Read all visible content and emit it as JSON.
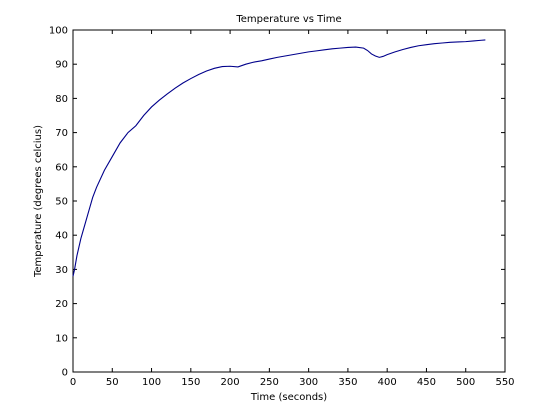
{
  "chart_data": {
    "type": "line",
    "title": "Temperature vs Time",
    "xlabel": "Time (seconds)",
    "ylabel": "Temperature (degrees celcius)",
    "xlim": [
      0,
      550
    ],
    "ylim": [
      0,
      100
    ],
    "xticks": [
      0,
      50,
      100,
      150,
      200,
      250,
      300,
      350,
      400,
      450,
      500,
      550
    ],
    "yticks": [
      0,
      10,
      20,
      30,
      40,
      50,
      60,
      70,
      80,
      90,
      100
    ],
    "grid": false,
    "line_color": "#00008B",
    "series": [
      {
        "x": [
          0,
          2,
          5,
          10,
          15,
          20,
          25,
          30,
          40,
          50,
          60,
          70,
          80,
          90,
          100,
          110,
          120,
          130,
          140,
          150,
          160,
          170,
          180,
          190,
          200,
          210,
          220,
          230,
          240,
          250,
          260,
          270,
          280,
          290,
          300,
          310,
          320,
          330,
          340,
          350,
          360,
          370,
          375,
          380,
          385,
          390,
          395,
          400,
          410,
          420,
          430,
          440,
          450,
          460,
          470,
          480,
          490,
          500,
          510,
          520,
          525
        ],
        "y": [
          28,
          30,
          34,
          39,
          43,
          47,
          51,
          54,
          59,
          63,
          67,
          70,
          72,
          75,
          77.5,
          79.5,
          81.3,
          83,
          84.5,
          85.8,
          87,
          88,
          88.8,
          89.3,
          89.4,
          89.2,
          90,
          90.6,
          91,
          91.5,
          92,
          92.4,
          92.8,
          93.2,
          93.6,
          93.9,
          94.2,
          94.5,
          94.7,
          94.9,
          95,
          94.7,
          94,
          93,
          92.4,
          92,
          92.3,
          92.8,
          93.6,
          94.3,
          94.9,
          95.4,
          95.7,
          96,
          96.2,
          96.4,
          96.5,
          96.6,
          96.8,
          97,
          97.1
        ]
      }
    ]
  }
}
